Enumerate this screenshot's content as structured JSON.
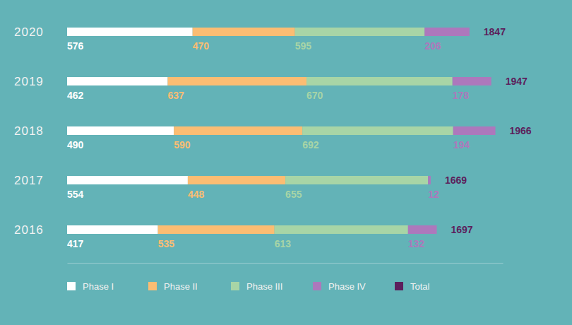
{
  "chart_data": {
    "type": "bar",
    "orientation": "horizontal",
    "stacked": true,
    "data_labels": true,
    "tick_labels": false,
    "categories": [
      "2020",
      "2019",
      "2018",
      "2017",
      "2016"
    ],
    "xlim": [
      0,
      2000
    ],
    "series": [
      {
        "name": "Phase I",
        "color": "#ffffff",
        "values": [
          576,
          462,
          490,
          554,
          417
        ]
      },
      {
        "name": "Phase II",
        "color": "#fbbd73",
        "values": [
          470,
          637,
          590,
          448,
          535
        ]
      },
      {
        "name": "Phase III",
        "color": "#a8d5a6",
        "values": [
          595,
          670,
          692,
          655,
          613
        ]
      },
      {
        "name": "Phase IV",
        "color": "#ad78bc",
        "values": [
          206,
          178,
          194,
          12,
          132
        ]
      }
    ],
    "totals": {
      "name": "Total",
      "color": "#5c1f5c",
      "values": [
        1847,
        1947,
        1966,
        1669,
        1697
      ]
    }
  }
}
